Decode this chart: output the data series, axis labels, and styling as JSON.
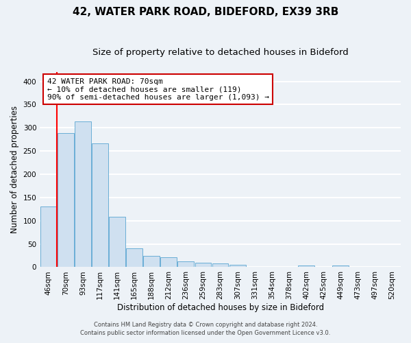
{
  "title1": "42, WATER PARK ROAD, BIDEFORD, EX39 3RB",
  "title2": "Size of property relative to detached houses in Bideford",
  "xlabel": "Distribution of detached houses by size in Bideford",
  "ylabel": "Number of detached properties",
  "bar_color": "#cfe0f0",
  "bar_edge_color": "#6aaed6",
  "bin_labels": [
    "46sqm",
    "70sqm",
    "93sqm",
    "117sqm",
    "141sqm",
    "165sqm",
    "188sqm",
    "212sqm",
    "236sqm",
    "259sqm",
    "283sqm",
    "307sqm",
    "331sqm",
    "354sqm",
    "378sqm",
    "402sqm",
    "425sqm",
    "449sqm",
    "473sqm",
    "497sqm",
    "520sqm"
  ],
  "bar_heights": [
    130,
    289,
    314,
    267,
    108,
    41,
    25,
    21,
    13,
    10,
    8,
    5,
    0,
    0,
    0,
    4,
    0,
    4,
    0,
    0,
    0
  ],
  "ylim": [
    0,
    420
  ],
  "yticks": [
    0,
    50,
    100,
    150,
    200,
    250,
    300,
    350,
    400
  ],
  "annotation_text_line1": "42 WATER PARK ROAD: 70sqm",
  "annotation_text_line2": "← 10% of detached houses are smaller (119)",
  "annotation_text_line3": "90% of semi-detached houses are larger (1,093) →",
  "annotation_box_color": "#ffffff",
  "annotation_box_edge": "#cc0000",
  "red_line_x": 1,
  "footnote1": "Contains HM Land Registry data © Crown copyright and database right 2024.",
  "footnote2": "Contains public sector information licensed under the Open Government Licence v3.0.",
  "bg_color": "#edf2f7",
  "grid_color": "#ffffff",
  "title_fontsize": 11,
  "subtitle_fontsize": 9.5,
  "axis_label_fontsize": 8.5,
  "tick_fontsize": 7.5,
  "footnote_fontsize": 6.0
}
